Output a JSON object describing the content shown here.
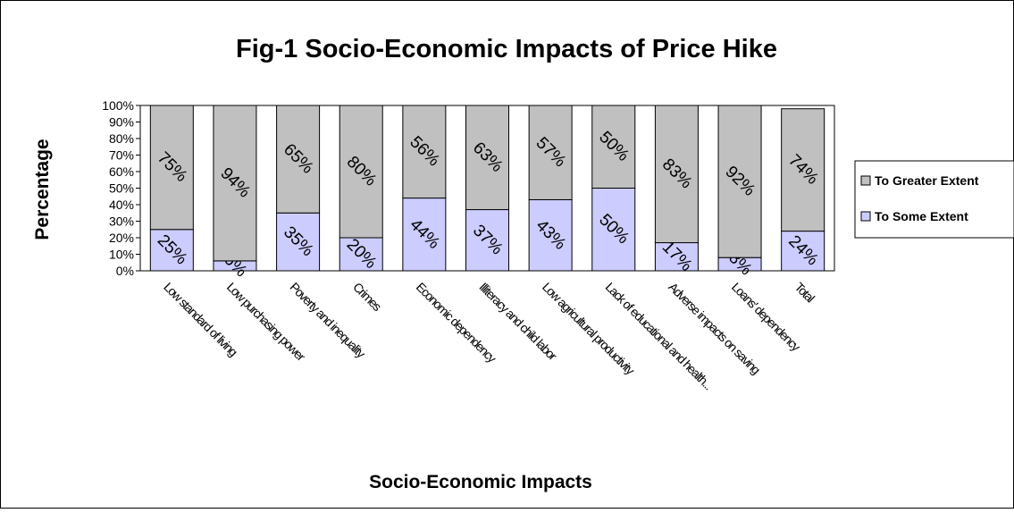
{
  "chart_data": {
    "type": "bar",
    "stacked": "percent",
    "title": "Fig-1 Socio-Economic Impacts of Price Hike",
    "xlabel": "Socio-Economic Impacts",
    "ylabel": "Percentage",
    "ylim": [
      0,
      100
    ],
    "y_ticks": [
      "0%",
      "10%",
      "20%",
      "30%",
      "40%",
      "50%",
      "60%",
      "70%",
      "80%",
      "90%",
      "100%"
    ],
    "categories": [
      "Low standard of living",
      "Low purchasing power",
      "Poverty and inequality",
      "Crimes",
      "Economic dependency",
      "Illiteracy and child labor",
      "Low agricultural productivity",
      "Lack of educational and health...",
      "Adverse impacts on saving",
      "Loans' dependency",
      "Total"
    ],
    "series": [
      {
        "name": "To Some Extent",
        "color": "#ccccff",
        "values": [
          25,
          6,
          35,
          20,
          44,
          37,
          43,
          50,
          17,
          8,
          24
        ],
        "labels": [
          "25%",
          "6%",
          "35%",
          "20%",
          "44%",
          "37%",
          "43%",
          "50%",
          "17%",
          "8%",
          "24%"
        ]
      },
      {
        "name": "To Greater Extent",
        "color": "#c0c0c0",
        "values": [
          75,
          94,
          65,
          80,
          56,
          63,
          57,
          50,
          83,
          92,
          74
        ],
        "labels": [
          "75%",
          "94%",
          "65%",
          "80%",
          "56%",
          "63%",
          "57%",
          "50%",
          "83%",
          "92%",
          "74%"
        ]
      }
    ],
    "legend_order": [
      "To Greater Extent",
      "To Some Extent"
    ],
    "legend_position": "right",
    "grid": false
  }
}
